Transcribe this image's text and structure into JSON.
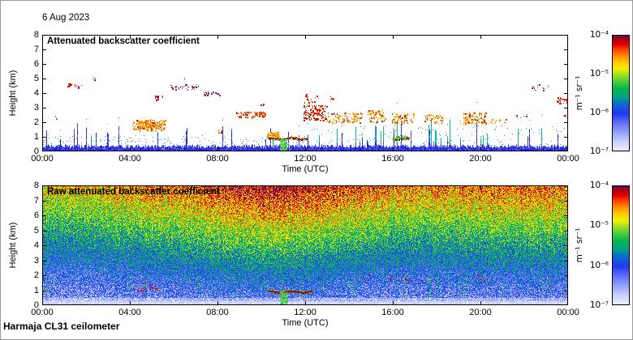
{
  "figure": {
    "date_label": "6 Aug 2023",
    "footer_label": "Harmaja CL31 ceilometer",
    "background": "#ffffff",
    "axis_color": "#000000"
  },
  "colormap": {
    "stops": [
      {
        "p": 0.0,
        "c": "#eeeeff"
      },
      {
        "p": 0.07,
        "c": "#ccd4ff"
      },
      {
        "p": 0.15,
        "c": "#99a6ff"
      },
      {
        "p": 0.23,
        "c": "#6678f8"
      },
      {
        "p": 0.32,
        "c": "#2038f0"
      },
      {
        "p": 0.4,
        "c": "#1064d2"
      },
      {
        "p": 0.46,
        "c": "#00a08c"
      },
      {
        "p": 0.53,
        "c": "#00b450"
      },
      {
        "p": 0.59,
        "c": "#3cc83c"
      },
      {
        "p": 0.65,
        "c": "#96dc28"
      },
      {
        "p": 0.71,
        "c": "#f0f000"
      },
      {
        "p": 0.77,
        "c": "#ffc800"
      },
      {
        "p": 0.83,
        "c": "#ff8200"
      },
      {
        "p": 0.88,
        "c": "#ff3c00"
      },
      {
        "p": 0.92,
        "c": "#e60000"
      },
      {
        "p": 0.96,
        "c": "#b40000"
      },
      {
        "p": 0.985,
        "c": "#8c0040"
      },
      {
        "p": 1.0,
        "c": "#5a0a50"
      }
    ]
  },
  "panels": [
    {
      "title": "Attenuated backscatter coefficient",
      "xlabel": "Time (UTC)",
      "ylabel": "Height (km)",
      "x_ticks": [
        "00:00",
        "04:00",
        "08:00",
        "12:00",
        "16:00",
        "20:00",
        "00:00"
      ],
      "y_ticks": [
        "0",
        "1",
        "2",
        "3",
        "4",
        "5",
        "6",
        "7",
        "8"
      ],
      "colorbar_ticks": [
        "10⁻⁴",
        "10⁻⁵",
        "10⁻⁶",
        "10⁻⁷"
      ],
      "colorbar_unit": "m⁻¹ sr⁻¹"
    },
    {
      "title": "Raw attenuated backscatter coefficient",
      "xlabel": "Time (UTC)",
      "ylabel": "Height (km)",
      "x_ticks": [
        "00:00",
        "04:00",
        "08:00",
        "12:00",
        "16:00",
        "20:00",
        "00:00"
      ],
      "y_ticks": [
        "0",
        "1",
        "2",
        "3",
        "4",
        "5",
        "6",
        "7",
        "8"
      ],
      "colorbar_ticks": [
        "10⁻⁴",
        "10⁻⁵",
        "10⁻⁶",
        "10⁻⁷"
      ],
      "colorbar_unit": "m⁻¹ sr⁻¹"
    }
  ],
  "chart_data": [
    {
      "type": "heatmap",
      "title": "Attenuated backscatter coefficient",
      "xlabel": "Time (UTC)",
      "ylabel": "Height (km)",
      "x_range_hours": [
        0,
        24
      ],
      "x_tick_hours": [
        0,
        4,
        8,
        12,
        16,
        20,
        24
      ],
      "y_range_km": [
        0,
        8
      ],
      "y_tick_km": [
        0,
        1,
        2,
        3,
        4,
        5,
        6,
        7,
        8
      ],
      "value_scale": "log10",
      "value_range_m1sr1": [
        1e-07,
        0.0001
      ],
      "unit": "m⁻¹ sr⁻¹",
      "grid": false,
      "legend_position": "right-colorbar",
      "background": "white (below 1e-7)",
      "surface_noise_band": {
        "solid_to_km": 0.4,
        "spikes_to_km": 2.0,
        "denser_after_hour": 11.5
      },
      "palettes": {
        "red": [
          "#e81800",
          "#c81000",
          "#ff4000",
          "#a00000"
        ],
        "redorange": [
          "#e83000",
          "#ff6000",
          "#c81800",
          "#ff9000"
        ],
        "orange": [
          "#ff8c00",
          "#ffc800",
          "#ff5a00",
          "#d43000",
          "#ffe650",
          "#b42000"
        ],
        "purple": [
          "#8c1e64",
          "#781452",
          "#a02870"
        ],
        "darkred": [
          "#aa0a0a",
          "#8c0a28",
          "#c81414"
        ],
        "green": [
          "#3cb428",
          "#64c828",
          "#14a050"
        ],
        "blob": [
          "#ffdc00",
          "#ffaa00",
          "#ff6e00",
          "#e63c00",
          "#ffee60"
        ]
      },
      "features": [
        {
          "kind": "speckle",
          "t": [
            0.6,
            0.75
          ],
          "h": [
            2.25,
            2.45
          ],
          "palette": "green",
          "density": 0.25
        },
        {
          "kind": "speckle",
          "t": [
            1.15,
            1.55
          ],
          "h": [
            4.45,
            4.7
          ],
          "palette": "red",
          "density": 0.5
        },
        {
          "kind": "speckle",
          "t": [
            1.6,
            1.9
          ],
          "h": [
            4.35,
            4.55
          ],
          "palette": "red",
          "density": 0.4
        },
        {
          "kind": "speckle",
          "t": [
            2.25,
            2.45
          ],
          "h": [
            4.9,
            5.1
          ],
          "palette": "red",
          "density": 0.5
        },
        {
          "kind": "speckle",
          "t": [
            4.1,
            5.6
          ],
          "h": [
            1.45,
            2.2
          ],
          "palette": "orange",
          "density": 0.85
        },
        {
          "kind": "speckle",
          "t": [
            4.3,
            5.2
          ],
          "h": [
            1.6,
            2.05
          ],
          "palette": "orange",
          "density": 1.2
        },
        {
          "kind": "speckle",
          "t": [
            5.05,
            5.5
          ],
          "h": [
            3.55,
            3.85
          ],
          "palette": "darkred",
          "density": 0.5
        },
        {
          "kind": "speckle",
          "t": [
            5.85,
            7.15
          ],
          "h": [
            4.25,
            4.6
          ],
          "palette": "purple",
          "density": 0.35
        },
        {
          "kind": "speckle",
          "t": [
            6.45,
            6.6
          ],
          "h": [
            4.95,
            5.1
          ],
          "palette": "purple",
          "density": 0.5
        },
        {
          "kind": "speckle",
          "t": [
            7.3,
            8.1
          ],
          "h": [
            3.85,
            4.2
          ],
          "palette": "purple",
          "density": 0.3
        },
        {
          "kind": "speckle",
          "t": [
            8.0,
            8.2
          ],
          "h": [
            1.3,
            1.55
          ],
          "palette": "orange",
          "density": 0.7
        },
        {
          "kind": "speckle",
          "t": [
            8.85,
            10.15
          ],
          "h": [
            2.35,
            2.75
          ],
          "palette": "redorange",
          "density": 0.8
        },
        {
          "kind": "speckle",
          "t": [
            9.95,
            10.15
          ],
          "h": [
            3.1,
            3.35
          ],
          "palette": "purple",
          "density": 0.4
        },
        {
          "kind": "blob",
          "t": [
            10.25,
            10.8
          ],
          "h": [
            0.95,
            1.35
          ],
          "palette": "blob",
          "density": 2.2
        },
        {
          "kind": "layer",
          "t": [
            10.35,
            12.1
          ],
          "h": [
            0.8,
            1.0
          ]
        },
        {
          "kind": "column",
          "t": [
            10.85,
            11.15
          ],
          "h": [
            0.0,
            0.82
          ]
        },
        {
          "kind": "speckle",
          "t": [
            11.9,
            12.95
          ],
          "h": [
            2.15,
            3.2
          ],
          "palette": "red",
          "density": 0.55
        },
        {
          "kind": "speckle",
          "t": [
            11.95,
            12.6
          ],
          "h": [
            3.2,
            3.95
          ],
          "palette": "red",
          "density": 0.18
        },
        {
          "kind": "speckle",
          "t": [
            12.95,
            14.6
          ],
          "h": [
            1.95,
            2.7
          ],
          "palette": "orange",
          "density": 0.5
        },
        {
          "kind": "speckle",
          "t": [
            13.0,
            13.3
          ],
          "h": [
            3.5,
            3.8
          ],
          "palette": "red",
          "density": 0.4
        },
        {
          "kind": "speckle",
          "t": [
            14.85,
            15.65
          ],
          "h": [
            2.0,
            2.9
          ],
          "palette": "orange",
          "density": 0.5
        },
        {
          "kind": "layer",
          "t": [
            16.0,
            16.75
          ],
          "h": [
            0.78,
            0.98
          ]
        },
        {
          "kind": "speckle",
          "t": [
            16.0,
            16.7
          ],
          "h": [
            0.85,
            1.1
          ],
          "palette": "green",
          "density": 0.8
        },
        {
          "kind": "speckle",
          "t": [
            15.95,
            16.95
          ],
          "h": [
            1.95,
            2.65
          ],
          "palette": "orange",
          "density": 0.5
        },
        {
          "kind": "speckle",
          "t": [
            17.4,
            18.25
          ],
          "h": [
            1.95,
            2.55
          ],
          "palette": "orange",
          "density": 0.45
        },
        {
          "kind": "speckle",
          "t": [
            19.2,
            20.25
          ],
          "h": [
            1.9,
            2.7
          ],
          "palette": "orange",
          "density": 0.75
        },
        {
          "kind": "speckle",
          "t": [
            20.4,
            21.15
          ],
          "h": [
            1.9,
            2.25
          ],
          "palette": "orange",
          "density": 0.3
        },
        {
          "kind": "speckle",
          "t": [
            21.55,
            22.25
          ],
          "h": [
            2.2,
            2.55
          ],
          "palette": "purple",
          "density": 0.12
        },
        {
          "kind": "speckle",
          "t": [
            22.3,
            23.15
          ],
          "h": [
            4.2,
            4.6
          ],
          "palette": "purple",
          "density": 0.2
        },
        {
          "kind": "speckle",
          "t": [
            23.45,
            24.0
          ],
          "h": [
            3.3,
            3.75
          ],
          "palette": "red",
          "density": 0.5
        },
        {
          "kind": "speckle",
          "t": [
            23.8,
            24.0
          ],
          "h": [
            2.35,
            2.6
          ],
          "palette": "red",
          "density": 0.5
        }
      ]
    },
    {
      "type": "heatmap",
      "title": "Raw attenuated backscatter coefficient",
      "xlabel": "Time (UTC)",
      "ylabel": "Height (km)",
      "x_range_hours": [
        0,
        24
      ],
      "x_tick_hours": [
        0,
        4,
        8,
        12,
        16,
        20,
        24
      ],
      "y_range_km": [
        0,
        8
      ],
      "y_tick_km": [
        0,
        1,
        2,
        3,
        4,
        5,
        6,
        7,
        8
      ],
      "value_scale": "log10",
      "value_range_m1sr1": [
        1e-07,
        0.0001
      ],
      "unit": "m⁻¹ sr⁻¹",
      "grid": false,
      "legend_position": "right-colorbar",
      "field": {
        "description": "dense speckle noise; values rise with height from near-threshold blue/white below ~1.5 km to orange/red near 8 km; strongest (reddest) roughly 08:00-14:00, weakest 00:00-03:00; thin pale band at 0-0.3 km",
        "enhanced_hours": [
          8,
          14
        ],
        "secondary_enhanced_hours": [
          21,
          24
        ],
        "surface_clean_band_km": 0.3
      },
      "features": [
        {
          "kind": "speckle",
          "t": [
            4.3,
            5.3
          ],
          "h": [
            1.0,
            1.5
          ],
          "palette": "red",
          "density": 0.25
        },
        {
          "kind": "layer",
          "t": [
            10.3,
            12.3
          ],
          "h": [
            0.8,
            1.05
          ]
        },
        {
          "kind": "column",
          "t": [
            10.85,
            11.2
          ],
          "h": [
            0.0,
            0.85
          ]
        },
        {
          "kind": "speckle",
          "t": [
            14.5,
            17.6
          ],
          "h": [
            1.6,
            2.1
          ],
          "palette": "red",
          "density": 0.06
        },
        {
          "kind": "speckle",
          "t": [
            19.6,
            20.4
          ],
          "h": [
            1.6,
            2.05
          ],
          "palette": "red",
          "density": 0.1
        }
      ]
    }
  ]
}
